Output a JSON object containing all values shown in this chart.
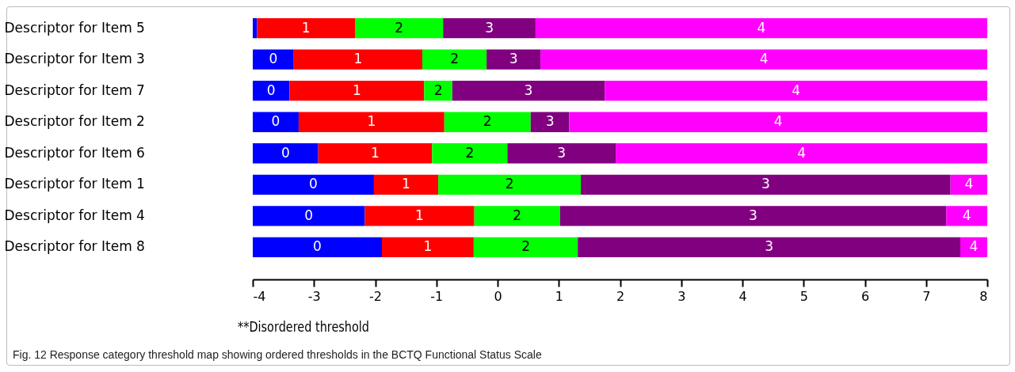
{
  "chart_data": {
    "type": "bar",
    "orientation": "horizontal",
    "categories": [
      "Descriptor for Item 5",
      "Descriptor for Item 3",
      "Descriptor for Item 7",
      "Descriptor for Item 2",
      "Descriptor for Item 6",
      "Descriptor for Item 1",
      "Descriptor for Item 4",
      "Descriptor for Item 8"
    ],
    "series": [
      {
        "name": "0",
        "color": "#0000ff",
        "base": [
          -4,
          -4,
          -4,
          -4,
          -4,
          -4,
          -4,
          -4
        ],
        "values": [
          0.07,
          0.67,
          0.6,
          0.75,
          1.07,
          1.98,
          1.83,
          2.11
        ]
      },
      {
        "name": "1",
        "color": "#ff0000",
        "base": [
          -3.93,
          -3.33,
          -3.4,
          -3.25,
          -2.93,
          -2.02,
          -2.17,
          -1.89
        ],
        "values": [
          1.6,
          2.1,
          2.2,
          2.38,
          1.86,
          1.05,
          1.79,
          1.5
        ]
      },
      {
        "name": "2",
        "color": "#00ff00",
        "base": [
          -2.33,
          -1.23,
          -1.2,
          -0.87,
          -1.07,
          -0.97,
          -0.38,
          -0.39
        ],
        "values": [
          1.44,
          1.05,
          0.46,
          1.41,
          1.23,
          2.33,
          1.4,
          1.7
        ]
      },
      {
        "name": "3",
        "color": "#800080",
        "base": [
          -0.89,
          -0.18,
          -0.74,
          0.54,
          0.16,
          1.36,
          1.02,
          1.31
        ],
        "values": [
          1.51,
          0.88,
          2.49,
          0.63,
          1.77,
          6.04,
          6.31,
          6.25
        ]
      },
      {
        "name": "4",
        "color": "#ff00ff",
        "base": [
          0.62,
          0.7,
          1.75,
          1.17,
          1.93,
          7.4,
          7.33,
          7.56
        ],
        "values": [
          7.38,
          7.3,
          6.25,
          6.83,
          6.07,
          0.6,
          0.67,
          0.44
        ]
      }
    ],
    "xlim": [
      -4,
      8
    ],
    "xticks": [
      -4,
      -3,
      -2,
      -1,
      0,
      1,
      2,
      3,
      4,
      5,
      6,
      7,
      8
    ],
    "grid": false,
    "annotations": [
      "**Disordered threshold",
      "Fig. 12 Response category threshold map showing ordered thresholds in the BCTQ Functional Status Scale"
    ]
  }
}
